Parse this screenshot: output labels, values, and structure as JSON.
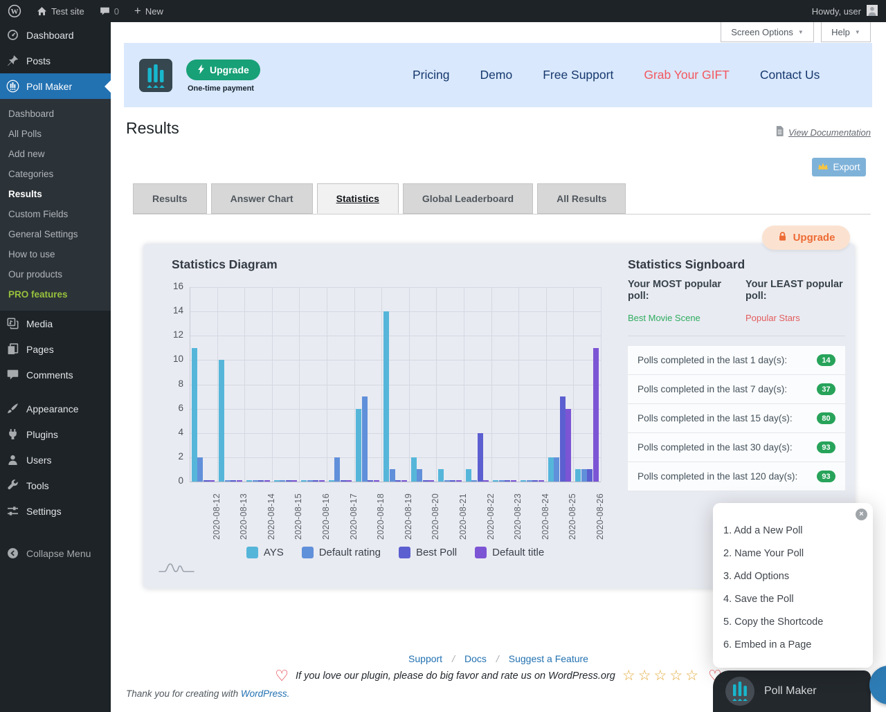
{
  "admin_bar": {
    "site_name": "Test site",
    "comment_count": "0",
    "new_label": "New",
    "howdy": "Howdy, user"
  },
  "screen_controls": {
    "screen_options": "Screen Options",
    "help": "Help"
  },
  "sidebar": {
    "items": [
      {
        "label": "Dashboard",
        "icon": "dashboard"
      },
      {
        "label": "Posts",
        "icon": "pin"
      },
      {
        "label": "Poll Maker",
        "icon": "poll",
        "active": true,
        "submenu": [
          {
            "label": "Dashboard"
          },
          {
            "label": "All Polls"
          },
          {
            "label": "Add new"
          },
          {
            "label": "Categories"
          },
          {
            "label": "Results",
            "current": true
          },
          {
            "label": "Custom Fields"
          },
          {
            "label": "General Settings"
          },
          {
            "label": "How to use"
          },
          {
            "label": "Our products"
          },
          {
            "label": "PRO features",
            "highlight": true
          }
        ]
      },
      {
        "label": "Media",
        "icon": "media"
      },
      {
        "label": "Pages",
        "icon": "pages"
      },
      {
        "label": "Comments",
        "icon": "comments"
      },
      {
        "separator": true
      },
      {
        "label": "Appearance",
        "icon": "appearance"
      },
      {
        "label": "Plugins",
        "icon": "plugins"
      },
      {
        "label": "Users",
        "icon": "users"
      },
      {
        "label": "Tools",
        "icon": "tools"
      },
      {
        "label": "Settings",
        "icon": "settings"
      },
      {
        "separator": true
      },
      {
        "label": "Collapse Menu",
        "icon": "collapse",
        "collapse": true
      }
    ]
  },
  "banner": {
    "upgrade_label": "Upgrade",
    "one_time_label": "One-time payment",
    "links": [
      {
        "label": "Pricing"
      },
      {
        "label": "Demo"
      },
      {
        "label": "Free Support"
      },
      {
        "label": "Grab Your GIFT",
        "highlight": true
      },
      {
        "label": "Contact Us"
      }
    ]
  },
  "page": {
    "title": "Results",
    "view_documentation": "View Documentation",
    "export_label": "Export",
    "upgrade_pill_label": "Upgrade"
  },
  "tabs": [
    {
      "label": "Results"
    },
    {
      "label": "Answer Chart"
    },
    {
      "label": "Statistics",
      "active": true
    },
    {
      "label": "Global Leaderboard"
    },
    {
      "label": "All Results"
    }
  ],
  "chart_data": {
    "type": "bar",
    "title": "Statistics Diagram",
    "categories": [
      "2020-08-12",
      "2020-08-13",
      "2020-08-14",
      "2020-08-15",
      "2020-08-16",
      "2020-08-17",
      "2020-08-18",
      "2020-08-19",
      "2020-08-20",
      "2020-08-21",
      "2020-08-22",
      "2020-08-23",
      "2020-08-24",
      "2020-08-25",
      "2020-08-26"
    ],
    "series": [
      {
        "name": "AYS",
        "color": "#56b6da",
        "values": [
          11,
          10,
          0,
          0,
          0,
          0,
          6,
          14,
          2,
          1,
          1,
          0,
          0,
          2,
          1
        ]
      },
      {
        "name": "Default rating",
        "color": "#6190da",
        "values": [
          2,
          0,
          0,
          0,
          0,
          2,
          7,
          1,
          1,
          0,
          0,
          0,
          0,
          2,
          1
        ]
      },
      {
        "name": "Best Poll",
        "color": "#5c5fd0",
        "values": [
          0,
          0,
          0,
          0,
          0,
          0,
          0,
          0,
          0,
          0,
          4,
          0,
          0,
          7,
          1
        ]
      },
      {
        "name": "Default title",
        "color": "#7c55d4",
        "values": [
          0,
          0,
          0,
          0,
          0,
          0,
          0,
          0,
          0,
          0,
          0,
          0,
          0,
          6,
          11
        ]
      }
    ],
    "ylim": [
      0,
      16
    ],
    "ytick_step": 2,
    "grid": true,
    "legend_position": "bottom",
    "xlabel": "",
    "ylabel": ""
  },
  "signboard": {
    "title": "Statistics Signboard",
    "most_label": "Your MOST popular poll:",
    "most_value": "Best Movie Scene",
    "least_label": "Your LEAST popular poll:",
    "least_value": "Popular Stars",
    "rows": [
      {
        "label": "Polls completed in the last 1 day(s):",
        "value": "14"
      },
      {
        "label": "Polls completed in the last 7 day(s):",
        "value": "37"
      },
      {
        "label": "Polls completed in the last 15 day(s):",
        "value": "80"
      },
      {
        "label": "Polls completed in the last 30 day(s):",
        "value": "93"
      },
      {
        "label": "Polls completed in the last 120 day(s):",
        "value": "93"
      }
    ]
  },
  "steps_popup": {
    "items": [
      "1. Add a New Poll",
      "2. Name Your Poll",
      "3. Add Options",
      "4. Save the Poll",
      "5. Copy the Shortcode",
      "6. Embed in a Page"
    ]
  },
  "footer": {
    "links": [
      "Support",
      "Docs",
      "Suggest a Feature"
    ],
    "rate_text": "If you love our plugin, please do big favor and rate us on WordPress.org",
    "star_count": 5,
    "thank_you": "Thank you for creating with",
    "wordpress_link": "WordPress."
  },
  "chat_widget": {
    "label": "Poll Maker"
  },
  "colors": {
    "accent_blue": "#2271b1",
    "banner_green": "#18a077",
    "gift_red": "#f4575e",
    "badge_green": "#27a35a",
    "most_green": "#2eac5f",
    "least_red": "#e25c5c",
    "upgrade_orange": "#ed6b36",
    "export_blue": "#7fb2d9"
  }
}
